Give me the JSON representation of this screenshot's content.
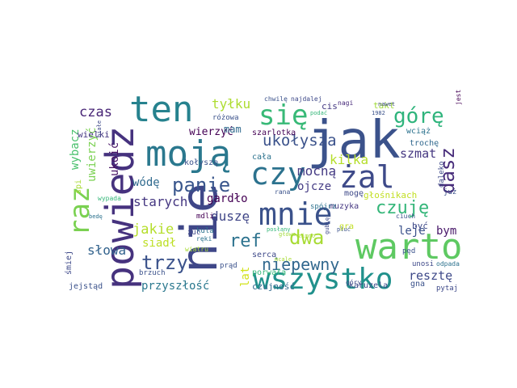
{
  "words": [
    {
      "text": "jak",
      "color": "#3b528b"
    },
    {
      "text": "nie",
      "color": "#3f4788"
    },
    {
      "text": "powiedz",
      "color": "#46327e"
    },
    {
      "text": "moją",
      "color": "#2a788e"
    },
    {
      "text": "warto",
      "color": "#5ec962"
    },
    {
      "text": "ten",
      "color": "#26828e"
    },
    {
      "text": "mnie",
      "color": "#3b528b"
    },
    {
      "text": "czy",
      "color": "#2c728e"
    },
    {
      "text": "żal",
      "color": "#3e4a89"
    },
    {
      "text": "wszystko",
      "color": "#21918c"
    },
    {
      "text": "raz",
      "color": "#7ad151"
    },
    {
      "text": "się",
      "color": "#38b977"
    },
    {
      "text": "górę",
      "color": "#2fb47c"
    },
    {
      "text": "dasz",
      "color": "#472c7a"
    },
    {
      "text": "panie",
      "color": "#39568c"
    },
    {
      "text": "trzy",
      "color": "#3b528b"
    },
    {
      "text": "dwa",
      "color": "#a8db34"
    },
    {
      "text": "ref",
      "color": "#2c728e"
    },
    {
      "text": "czuję",
      "color": "#34b679"
    },
    {
      "text": "niepewny",
      "color": "#31688e"
    },
    {
      "text": "ukołysza",
      "color": "#3b528b"
    },
    {
      "text": "szmat",
      "color": "#453781"
    },
    {
      "text": "czas",
      "color": "#482576"
    },
    {
      "text": "tyłku",
      "color": "#addc30"
    },
    {
      "text": "mocną",
      "color": "#443a83"
    },
    {
      "text": "kilka",
      "color": "#b5de2b"
    },
    {
      "text": "duszę",
      "color": "#404688"
    },
    {
      "text": "ojcze",
      "color": "#443b84"
    },
    {
      "text": "jakie",
      "color": "#b5de2b"
    },
    {
      "text": "starych",
      "color": "#453781"
    },
    {
      "text": "słowa",
      "color": "#33638d"
    },
    {
      "text": "przyszłość",
      "color": "#2a788e"
    },
    {
      "text": "resztę",
      "color": "#3e4989"
    },
    {
      "text": "wódę",
      "color": "#306a8e"
    },
    {
      "text": "gardło",
      "color": "#440154"
    },
    {
      "text": "bym",
      "color": "#481769"
    },
    {
      "text": "leje",
      "color": "#3b528b"
    },
    {
      "text": "siadł",
      "color": "#bddf26"
    },
    {
      "text": "ukoić",
      "color": "#471365"
    },
    {
      "text": "wybacz",
      "color": "#4ac16d"
    },
    {
      "text": "uwierzyć",
      "color": "#7ad151"
    },
    {
      "text": "lat",
      "color": "#d2e21b"
    },
    {
      "text": "wierzyć",
      "color": "#440154"
    },
    {
      "text": "mam",
      "color": "#306a8e"
    },
    {
      "text": "szarlotka",
      "color": "#440154"
    },
    {
      "text": "cała",
      "color": "#2c728e"
    },
    {
      "text": "muzyka",
      "color": "#453781"
    },
    {
      "text": "kołyszę",
      "color": "#3b528b"
    },
    {
      "text": "głośnikach",
      "color": "#c2df23"
    },
    {
      "text": "mogę",
      "color": "#3e4989"
    },
    {
      "text": "serca",
      "color": "#3e4989"
    },
    {
      "text": "porwała",
      "color": "#35b779"
    },
    {
      "text": "karuzela",
      "color": "#3e4989"
    },
    {
      "text": "czujność",
      "color": "#31688e"
    },
    {
      "text": "jejstąd",
      "color": "#3b528b"
    },
    {
      "text": "śmiej",
      "color": "#3e4989"
    },
    {
      "text": "wielki",
      "color": "#453781"
    },
    {
      "text": "wciąż",
      "color": "#2c728e"
    },
    {
      "text": "trochę",
      "color": "#31688e"
    },
    {
      "text": "takt",
      "color": "#a0da39"
    },
    {
      "text": "cis",
      "color": "#443983"
    },
    {
      "text": "różowa",
      "color": "#3b528b"
    },
    {
      "text": "chwilę",
      "color": "#3b528b"
    },
    {
      "text": "najdalej",
      "color": "#3e4989"
    },
    {
      "text": "nagi",
      "color": "#472a7a"
    },
    {
      "text": "jest",
      "color": "#440154"
    },
    {
      "text": "śpi",
      "color": "#a8db34"
    },
    {
      "text": "mdli",
      "color": "#440154"
    },
    {
      "text": "kula",
      "color": "#2c728e"
    },
    {
      "text": "ręki",
      "color": "#2c728e"
    },
    {
      "text": "zuć",
      "color": "#3e4989"
    },
    {
      "text": "prąd",
      "color": "#3b528b"
    },
    {
      "text": "brzuch",
      "color": "#3b528b"
    },
    {
      "text": "wypada",
      "color": "#35b779"
    },
    {
      "text": "gra",
      "color": "#c2df23"
    },
    {
      "text": "spójrz",
      "color": "#2c728e"
    },
    {
      "text": "już",
      "color": "#3b528b"
    },
    {
      "text": "daleko",
      "color": "#3e4989"
    },
    {
      "text": "być",
      "color": "#3e4989"
    },
    {
      "text": "pęd",
      "color": "#3b528b"
    },
    {
      "text": "unosi",
      "color": "#3e4989"
    },
    {
      "text": "odpada",
      "color": "#2c728e"
    },
    {
      "text": "gna",
      "color": "#3b528b"
    },
    {
      "text": "pytaj",
      "color": "#3e4989"
    },
    {
      "text": "góry",
      "color": "#3e4989"
    },
    {
      "text": "ciuch",
      "color": "#3b528b"
    },
    {
      "text": "posłany",
      "color": "#35b779"
    },
    {
      "text": "rana",
      "color": "#3b528b"
    },
    {
      "text": "podać",
      "color": "#35b779"
    },
    {
      "text": "1982",
      "color": "#3b528b"
    },
    {
      "text": "głowa",
      "color": "#a0da39"
    },
    {
      "text": "wiatru",
      "color": "#a8db34"
    },
    {
      "text": "białe",
      "color": "#3e4989"
    },
    {
      "text": "bedę",
      "color": "#2c728e"
    },
    {
      "text": "zimno",
      "color": "#a8db34"
    },
    {
      "text": "gubię",
      "color": "#3e4989"
    },
    {
      "text": "pluć",
      "color": "#3b528b"
    },
    {
      "text": "mcale",
      "color": "#a8db34"
    },
    {
      "text": "nawet",
      "color": "#3e4989"
    }
  ]
}
